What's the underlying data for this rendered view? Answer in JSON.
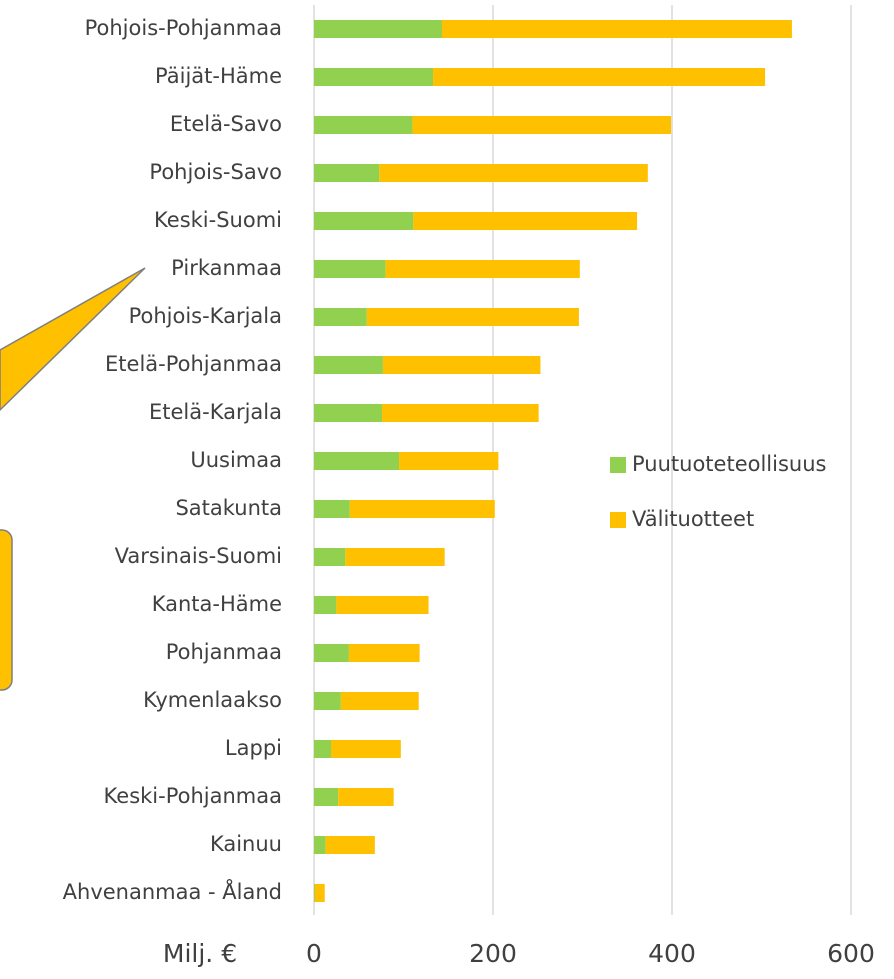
{
  "chart_data": {
    "type": "stacked_bar_horizontal",
    "xlabel": "Milj. €",
    "categories": [
      "Pohjois-Pohjanmaa",
      "Päijät-Häme",
      "Etelä-Savo",
      "Pohjois-Savo",
      "Keski-Suomi",
      "Pirkanmaa",
      "Pohjois-Karjala",
      "Etelä-Pohjanmaa",
      "Etelä-Karjala",
      "Uusimaa",
      "Satakunta",
      "Varsinais-Suomi",
      "Kanta-Häme",
      "Pohjanmaa",
      "Kymenlaakso",
      "Lappi",
      "Keski-Pohjanmaa",
      "Kainuu",
      "Ahvenanmaa - Åland"
    ],
    "series": [
      {
        "name": "Puutuoteteollisuus",
        "color": "#92d050",
        "values": [
          143,
          133,
          110,
          73,
          111,
          80,
          59,
          77,
          76,
          95,
          40,
          35,
          25,
          39,
          30,
          19,
          27,
          13,
          1
        ]
      },
      {
        "name": "Välituotteet",
        "color": "#ffc000",
        "values": [
          391,
          371,
          289,
          300,
          250,
          217,
          237,
          176,
          175,
          111,
          162,
          111,
          103,
          79,
          87,
          78,
          62,
          55,
          11
        ]
      }
    ],
    "xlim": [
      0,
      600
    ],
    "xticks": [
      0,
      200,
      400,
      600
    ],
    "grid": true
  }
}
